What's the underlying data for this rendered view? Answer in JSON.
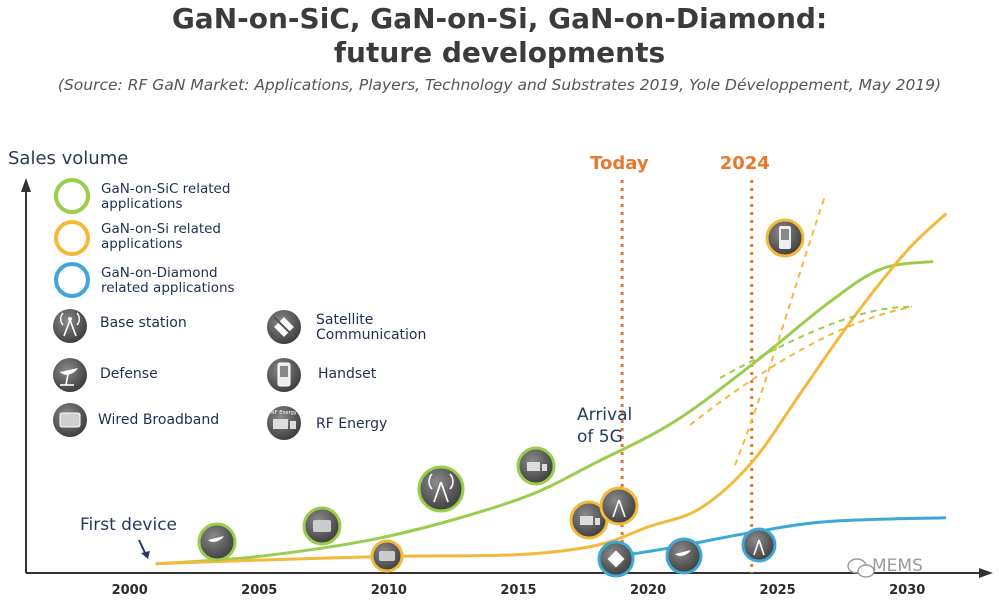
{
  "title_line1": "GaN-on-SiC, GaN-on-Si, GaN-on-Diamond:",
  "title_line2": "future developments",
  "source": "(Source: RF GaN Market: Applications, Players, Technology and Substrates 2019, Yole Développement, May 2019)",
  "chart_data": {
    "type": "line",
    "ylabel": "Sales volume",
    "xlabel": "",
    "x_ticks": [
      "2000",
      "2005",
      "2010",
      "2015",
      "2020",
      "2025",
      "2030"
    ],
    "xlim": [
      1996,
      2033
    ],
    "markers": [
      {
        "label": "Today",
        "x": 2019,
        "color": "#e8772e"
      },
      {
        "label": "2024",
        "x": 2024,
        "color": "#e8772e"
      }
    ],
    "series": [
      {
        "name": "GaN-on-SiC related applications",
        "color": "#9acd4c",
        "points": [
          [
            2001,
            0.0
          ],
          [
            2005,
            0.04
          ],
          [
            2010,
            0.15
          ],
          [
            2015,
            0.35
          ],
          [
            2018,
            0.55
          ],
          [
            2021,
            0.77
          ],
          [
            2024,
            1.08
          ],
          [
            2027,
            1.42
          ],
          [
            2029,
            1.6
          ],
          [
            2031,
            1.64
          ]
        ]
      },
      {
        "name": "GaN-on-Si related applications",
        "color": "#f2b93b",
        "points": [
          [
            2001,
            0.0
          ],
          [
            2005,
            0.02
          ],
          [
            2010,
            0.04
          ],
          [
            2015,
            0.05
          ],
          [
            2018,
            0.1
          ],
          [
            2020,
            0.2
          ],
          [
            2022,
            0.3
          ],
          [
            2024,
            0.55
          ],
          [
            2026,
            0.95
          ],
          [
            2028,
            1.35
          ],
          [
            2030,
            1.7
          ],
          [
            2031.5,
            1.9
          ]
        ]
      },
      {
        "name": "GaN-on-Diamond related applications",
        "color": "#3fa7d6",
        "points": [
          [
            2018.8,
            0.04
          ],
          [
            2021,
            0.09
          ],
          [
            2024,
            0.17
          ],
          [
            2027,
            0.23
          ],
          [
            2031.5,
            0.25
          ]
        ]
      }
    ],
    "ylim": [
      -0.05,
      2.05
    ]
  },
  "legend": [
    {
      "label_line1": "GaN-on-SiC related",
      "label_line2": "applications",
      "color": "#9acd4c"
    },
    {
      "label_line1": "GaN-on-Si related",
      "label_line2": "applications",
      "color": "#f2b93b"
    },
    {
      "label_line1": "GaN-on-Diamond",
      "label_line2": "related applications",
      "color": "#3fa7d6"
    }
  ],
  "applications": [
    {
      "label_line1": "Base station",
      "label_line2": "",
      "icon": "base-station-icon"
    },
    {
      "label_line1": "Satellite",
      "label_line2": "Communication",
      "icon": "satellite-icon"
    },
    {
      "label_line1": "Defense",
      "label_line2": "",
      "icon": "radar-dish-icon"
    },
    {
      "label_line1": "Handset",
      "label_line2": "",
      "icon": "handset-icon"
    },
    {
      "label_line1": "Wired Broadband",
      "label_line2": "",
      "icon": "broadband-icon"
    },
    {
      "label_line1": "RF Energy",
      "label_line2": "",
      "icon": "rf-energy-icon"
    }
  ],
  "annotations": {
    "first_device": "First device",
    "arrival_line1": "Arrival",
    "arrival_line2": "of 5G"
  },
  "watermark": "MEMS"
}
